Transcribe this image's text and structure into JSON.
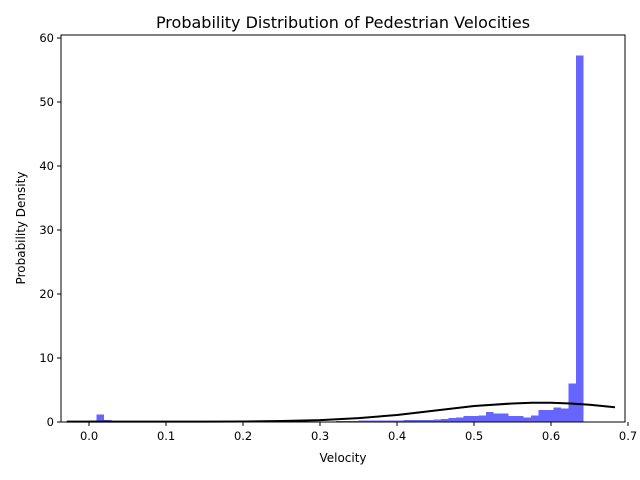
{
  "chart_data": {
    "type": "bar",
    "title": "Probability Distribution of Pedestrian Velocities",
    "xlabel": "Velocity",
    "ylabel": "Probability Density",
    "xlim": [
      -0.0365,
      0.696
    ],
    "ylim": [
      0,
      60.5
    ],
    "xticks": [
      0.0,
      0.1,
      0.2,
      0.3,
      0.4,
      0.5,
      0.6,
      0.7
    ],
    "xtick_labels": [
      "0.0",
      "0.1",
      "0.2",
      "0.3",
      "0.4",
      "0.5",
      "0.6",
      "0.7"
    ],
    "yticks": [
      0,
      10,
      20,
      30,
      40,
      50,
      60
    ],
    "ytick_labels": [
      "0",
      "10",
      "20",
      "30",
      "40",
      "50",
      "60"
    ],
    "grid": false,
    "histogram": {
      "color": "#6666ff",
      "bin_start": 0.0,
      "bin_width": 0.009724,
      "densities": [
        0.2,
        1.2,
        0.3,
        0.1,
        0.1,
        0.1,
        0.1,
        0.1,
        0.1,
        0.1,
        0.1,
        0.1,
        0.1,
        0.1,
        0.15,
        0.1,
        0.1,
        0.1,
        0.1,
        0.1,
        0.1,
        0.1,
        0.1,
        0.1,
        0.1,
        0.1,
        0.1,
        0.1,
        0.1,
        0.1,
        0.1,
        0.1,
        0.1,
        0.15,
        0.15,
        0.15,
        0.2,
        0.2,
        0.2,
        0.2,
        0.25,
        0.25,
        0.3,
        0.3,
        0.3,
        0.35,
        0.4,
        0.5,
        0.6,
        0.7,
        0.9,
        0.9,
        1.0,
        1.6,
        1.3,
        1.3,
        0.9,
        0.9,
        0.7,
        1.0,
        1.9,
        1.9,
        2.3,
        2.1,
        6.0,
        57.3
      ]
    },
    "fit_curve": {
      "color": "#000000",
      "x": [
        -0.029,
        0.0,
        0.05,
        0.1,
        0.15,
        0.2,
        0.25,
        0.3,
        0.35,
        0.4,
        0.45,
        0.5,
        0.55,
        0.575,
        0.6,
        0.625,
        0.65,
        0.683
      ],
      "y": [
        0.05,
        0.05,
        0.05,
        0.05,
        0.06,
        0.08,
        0.15,
        0.3,
        0.6,
        1.1,
        1.8,
        2.5,
        2.9,
        3.0,
        3.0,
        2.9,
        2.7,
        2.3
      ]
    }
  }
}
